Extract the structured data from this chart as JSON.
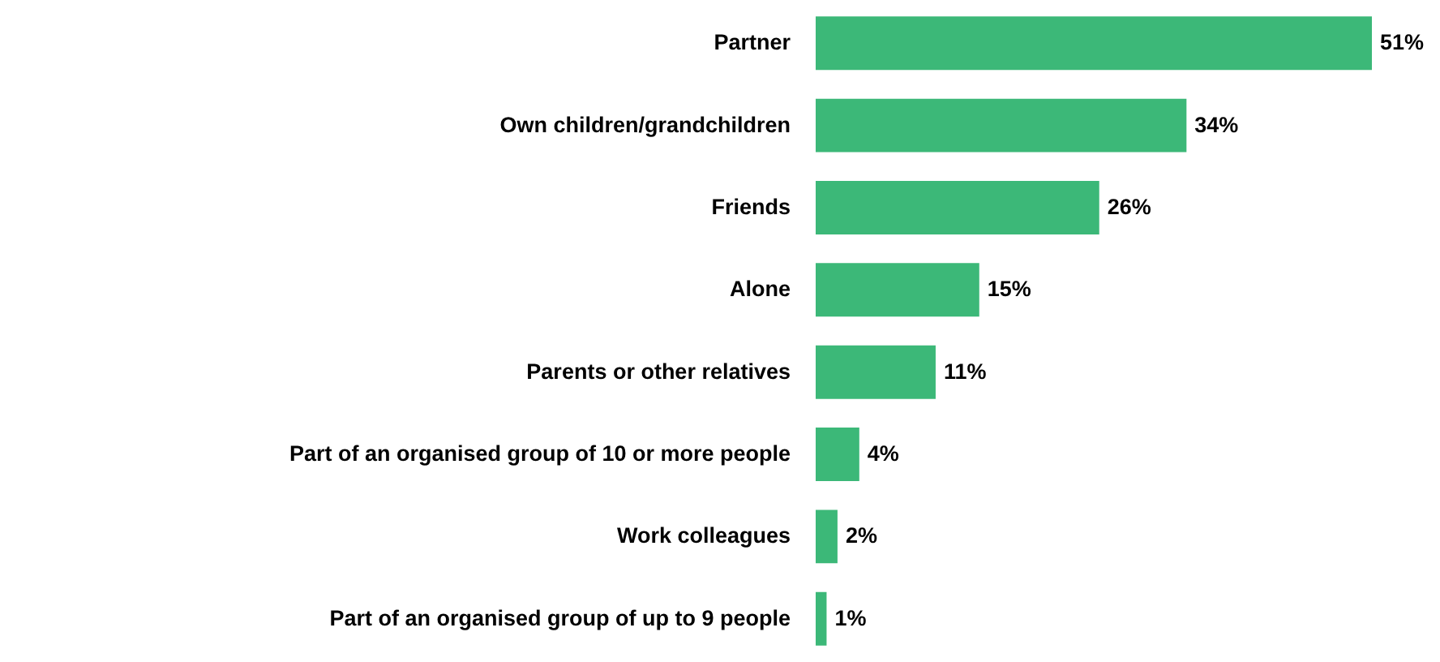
{
  "chart_data": {
    "type": "bar",
    "orientation": "horizontal",
    "categories": [
      "Partner",
      "Own children/grandchildren",
      "Friends",
      "Alone",
      "Parents or other relatives",
      "Part of an organised group of 10 or more people",
      "Work colleagues",
      "Part of an organised group of up to 9 people"
    ],
    "values": [
      51,
      34,
      26,
      15,
      11,
      4,
      2,
      1
    ],
    "value_labels": [
      "51%",
      "34%",
      "26%",
      "15%",
      "11%",
      "4%",
      "2%",
      "1%"
    ],
    "color": "#3cb878"
  }
}
